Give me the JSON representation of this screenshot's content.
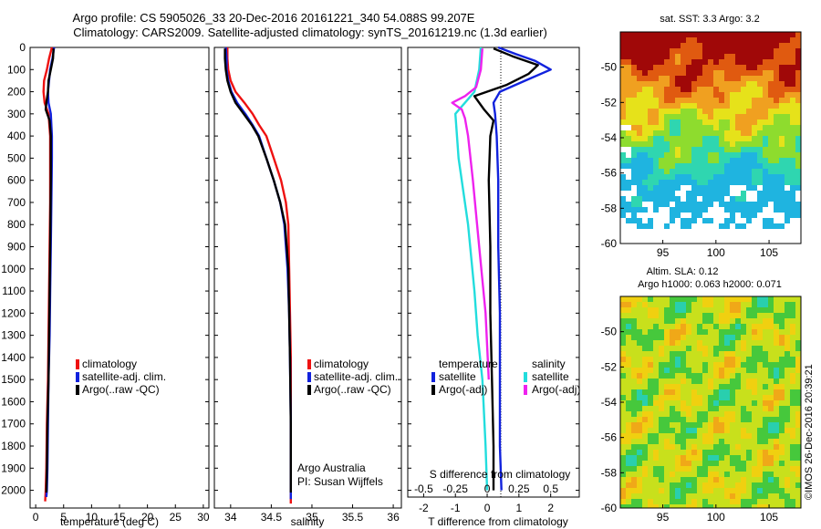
{
  "header": {
    "title_line1": "Argo profile: CS 5905026_33 20-Dec-2016 20161221_340 54.088S 99.207E",
    "title_line2": "Climatology: CARS2009. Satellite-adjusted climatology: synTS_20161219.nc (1.3d earlier)"
  },
  "footer": {
    "credit": "Argo Australia",
    "pi": "PI: Susan Wijffels",
    "stamp": "©IMOS 26-Dec-2016 20:39:21"
  },
  "colors": {
    "climatology": "#ee1111",
    "satellite": "#1122dd",
    "argo": "#000000",
    "satellite_salinity": "#22dddd",
    "argo_salinity": "#ee22ee"
  },
  "chart_data": [
    {
      "id": "temperature",
      "type": "line",
      "xlabel": "temperature (deg C)",
      "ylabel": "",
      "xlim": [
        -1,
        31
      ],
      "ylim": [
        2080,
        0
      ],
      "xticks": [
        "0",
        "5",
        "10",
        "15",
        "20",
        "25",
        "30"
      ],
      "yticks": [
        "0",
        "100",
        "200",
        "300",
        "400",
        "500",
        "600",
        "700",
        "800",
        "900",
        "1000",
        "1100",
        "1200",
        "1300",
        "1400",
        "1500",
        "1600",
        "1700",
        "1800",
        "1900",
        "2000"
      ],
      "legend": [
        "climatology",
        "satellite-adj. clim.",
        "Argo(..raw -QC)"
      ],
      "series": [
        {
          "name": "climatology",
          "color": "#ee1111",
          "x": [
            2.9,
            2.4,
            2.0,
            1.5,
            1.4,
            1.6,
            2.3,
            2.6,
            2.6,
            2.6,
            2.5,
            2.4,
            2.3,
            2.2,
            2.0,
            1.9,
            1.8,
            1.7
          ],
          "y": [
            0,
            50,
            100,
            150,
            200,
            250,
            300,
            400,
            500,
            700,
            900,
            1100,
            1300,
            1500,
            1700,
            1900,
            2000,
            2050
          ]
        },
        {
          "name": "satellite-adj. clim.",
          "color": "#1122dd",
          "x": [
            3.3,
            3.0,
            2.6,
            2.4,
            2.2,
            2.3,
            2.7,
            2.9,
            2.9,
            2.8,
            2.7,
            2.6,
            2.5,
            2.3,
            2.2,
            2.1,
            2.0,
            1.9
          ],
          "y": [
            0,
            50,
            100,
            150,
            200,
            250,
            300,
            400,
            500,
            700,
            900,
            1100,
            1300,
            1500,
            1700,
            1900,
            2000,
            2030
          ]
        },
        {
          "name": "Argo(..raw -QC)",
          "color": "#000000",
          "x": [
            3.2,
            3.1,
            2.7,
            2.3,
            2.2,
            1.9,
            1.8,
            2.5,
            2.7,
            2.7,
            2.6,
            2.5,
            2.4,
            2.3,
            2.1,
            2.0,
            1.9
          ],
          "y": [
            5,
            50,
            100,
            150,
            200,
            250,
            280,
            330,
            400,
            600,
            900,
            1100,
            1300,
            1500,
            1700,
            1900,
            2010
          ]
        }
      ]
    },
    {
      "id": "salinity",
      "type": "line",
      "xlabel": "salinity",
      "xlim": [
        33.8,
        36.1
      ],
      "ylim": [
        2080,
        0
      ],
      "xticks": [
        "34",
        "34.5",
        "35",
        "35.5",
        "36"
      ],
      "legend": [
        "climatology",
        "satellite-adj. clim.",
        "Argo(..raw -QC)"
      ],
      "series": [
        {
          "name": "climatology",
          "color": "#ee1111",
          "x": [
            33.96,
            33.96,
            33.97,
            34.0,
            34.06,
            34.17,
            34.27,
            34.35,
            34.44,
            34.53,
            34.62,
            34.68,
            34.71,
            34.72,
            34.73,
            34.74,
            34.74,
            34.74,
            34.74
          ],
          "y": [
            0,
            50,
            100,
            150,
            200,
            250,
            300,
            350,
            400,
            500,
            600,
            700,
            800,
            1000,
            1200,
            1400,
            1700,
            2000,
            2060
          ]
        },
        {
          "name": "satellite-adj. clim.",
          "color": "#1122dd",
          "x": [
            33.94,
            33.95,
            33.95,
            33.97,
            34.01,
            34.08,
            34.18,
            34.27,
            34.35,
            34.44,
            34.53,
            34.61,
            34.66,
            34.7,
            34.72,
            34.73,
            34.74,
            34.74,
            34.74
          ],
          "y": [
            0,
            50,
            100,
            150,
            200,
            250,
            300,
            350,
            400,
            500,
            600,
            700,
            800,
            1000,
            1200,
            1400,
            1700,
            2000,
            2040
          ]
        },
        {
          "name": "Argo(..raw -QC)",
          "color": "#000000",
          "x": [
            33.93,
            33.93,
            33.94,
            33.96,
            34.0,
            34.06,
            34.16,
            34.26,
            34.34,
            34.44,
            34.53,
            34.61,
            34.67,
            34.71,
            34.72,
            34.73,
            34.74,
            34.74
          ],
          "y": [
            5,
            50,
            100,
            150,
            200,
            250,
            300,
            350,
            400,
            500,
            600,
            700,
            800,
            1000,
            1200,
            1400,
            1700,
            2010
          ]
        }
      ]
    },
    {
      "id": "difference",
      "type": "line",
      "xlabel": "T difference from climatology",
      "toplabel": "S difference from climatology",
      "xlim": [
        -2.5,
        2.9
      ],
      "ylim": [
        2080,
        0
      ],
      "xticks": [
        "-2",
        "-1",
        "0",
        "1",
        "2"
      ],
      "xticks_top": [
        "-0.5",
        "-0.25",
        "0",
        "0.25",
        "0.5"
      ],
      "legend_headers": [
        "temperature",
        "salinity"
      ],
      "legend": [
        "satellite",
        "Argo(-adj)",
        "satellite",
        "Argo(-adj)"
      ],
      "series": [
        {
          "name": "satellite",
          "color": "#1122dd",
          "x": [
            0.35,
            0.9,
            1.5,
            2.0,
            1.2,
            0.4,
            0.2,
            0.25,
            0.3,
            0.35,
            0.35,
            0.4,
            0.4,
            0.4,
            0.45
          ],
          "y": [
            0,
            30,
            60,
            100,
            150,
            200,
            250,
            300,
            400,
            600,
            900,
            1200,
            1500,
            1800,
            2000
          ]
        },
        {
          "name": "Argo(-adj)",
          "color": "#000000",
          "x": [
            0.2,
            0.8,
            1.6,
            1.3,
            0.6,
            -0.4,
            -0.1,
            0.2,
            0.1,
            0.05,
            0.1,
            0.1,
            0.15,
            0.2,
            0.2
          ],
          "y": [
            5,
            40,
            80,
            120,
            170,
            220,
            280,
            330,
            400,
            600,
            900,
            1200,
            1500,
            1800,
            2000
          ]
        },
        {
          "name": "satellite",
          "color": "#22dddd",
          "x": [
            -0.2,
            -0.25,
            -0.4,
            -1.0,
            -0.9,
            -0.6,
            -0.4,
            -0.3,
            -0.15,
            -0.05,
            0.0
          ],
          "y": [
            0,
            100,
            200,
            300,
            500,
            800,
            1100,
            1300,
            1500,
            1800,
            2000
          ]
        },
        {
          "name": "Argo(-adj)",
          "color": "#ee22ee",
          "x": [
            -0.15,
            -0.2,
            -0.35,
            -0.7,
            -1.1,
            -0.8,
            -0.7,
            -0.6,
            -0.45,
            -0.25,
            -0.05,
            0.05
          ],
          "y": [
            5,
            100,
            180,
            220,
            250,
            280,
            320,
            400,
            600,
            900,
            1200,
            1500
          ]
        }
      ]
    },
    {
      "id": "sst-map",
      "type": "heatmap",
      "title": "sat. SST: 3.3 Argo: 3.2",
      "xlim": [
        91,
        108
      ],
      "ylim": [
        -60,
        -48
      ],
      "xticks": [
        "95",
        "100",
        "105"
      ],
      "yticks": [
        "-50",
        "-52",
        "-54",
        "-56",
        "-58",
        "-60"
      ]
    },
    {
      "id": "sla-map",
      "type": "heatmap",
      "title": "Altim. SLA: 0.12",
      "subtitle": "Argo h1000: 0.063 h2000: 0.071",
      "xlim": [
        91,
        108
      ],
      "ylim": [
        -60,
        -48
      ],
      "xticks": [
        "95",
        "100",
        "105"
      ],
      "yticks": [
        "-50",
        "-52",
        "-54",
        "-56",
        "-58",
        "-60"
      ]
    }
  ]
}
